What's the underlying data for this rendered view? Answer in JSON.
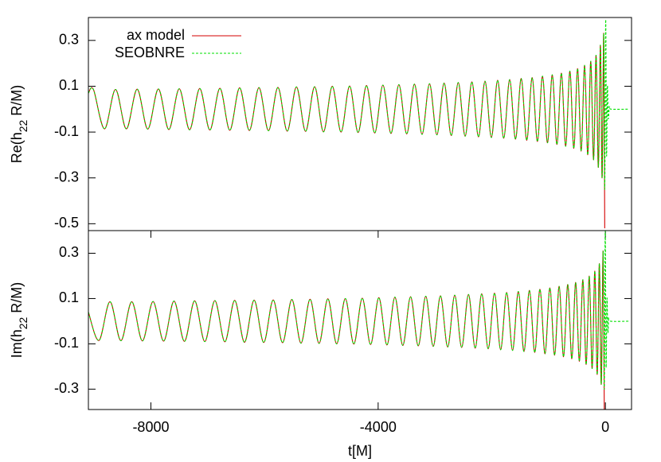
{
  "chart_data": [
    {
      "type": "line",
      "ylabel": [
        "Re(h",
        "22",
        " R/M)"
      ],
      "legend": "top-left",
      "xlim": [
        -9100,
        460
      ],
      "ylim": [
        -0.53,
        0.4
      ],
      "yticks": [
        0.3,
        0.1,
        -0.1,
        -0.3,
        -0.5
      ],
      "x": [
        -9100,
        -9010,
        -8816,
        -8623,
        -8432,
        -8242,
        -8055,
        -7868,
        -7684,
        -7501,
        -7319,
        -7140,
        -6962,
        -6785,
        -6611,
        -6438,
        -6267,
        -6098,
        -5930,
        -5764,
        -5600,
        -5438,
        -5277,
        -5118,
        -4962,
        -4807,
        -4653,
        -4502,
        -4353,
        -4205,
        -4060,
        -3916,
        -3774,
        -3635,
        -3497,
        -3361,
        -3227,
        -3096,
        -2966,
        -2839,
        -2713,
        -2590,
        -2469,
        -2350,
        -2234,
        -2119,
        -2007,
        -1897,
        -1790,
        -1685,
        -1582,
        -1482,
        -1384,
        -1289,
        -1196,
        -1107,
        -1019,
        -935,
        -853,
        -774,
        -699,
        -625,
        -556,
        -489,
        -426,
        -366,
        -310,
        -257,
        -208,
        -164,
        -124,
        -88,
        -58,
        -30,
        -12,
        5,
        20,
        35,
        50,
        70,
        100,
        420
      ],
      "series": [
        {
          "name": "ax model",
          "color": "#d40000",
          "dash": false,
          "values": [
            0.07,
            0.085,
            -0.086,
            0.086,
            -0.086,
            0.087,
            -0.087,
            0.088,
            -0.089,
            0.089,
            -0.09,
            0.09,
            -0.091,
            0.091,
            -0.092,
            0.093,
            -0.093,
            0.094,
            -0.094,
            0.095,
            -0.096,
            0.097,
            -0.097,
            0.098,
            -0.099,
            0.1,
            -0.1,
            0.101,
            -0.102,
            0.103,
            -0.104,
            0.105,
            -0.106,
            0.107,
            -0.108,
            0.109,
            -0.11,
            0.111,
            -0.112,
            0.114,
            -0.115,
            0.116,
            -0.118,
            0.119,
            -0.121,
            0.122,
            -0.124,
            0.126,
            -0.127,
            0.129,
            -0.131,
            0.134,
            -0.136,
            0.138,
            -0.141,
            0.144,
            -0.147,
            0.15,
            -0.154,
            0.157,
            -0.162,
            0.166,
            -0.171,
            0.177,
            -0.183,
            0.191,
            -0.199,
            0.209,
            -0.221,
            0.235,
            -0.254,
            0.279,
            -0.3,
            0.33,
            -0.52,
            null,
            null,
            null,
            null,
            null,
            null,
            null
          ]
        },
        {
          "name": "SEOBNRE",
          "color": "#00e000",
          "dash": true,
          "values": [
            0.07,
            0.085,
            -0.086,
            0.086,
            -0.086,
            0.087,
            -0.087,
            0.088,
            -0.089,
            0.089,
            -0.09,
            0.09,
            -0.091,
            0.091,
            -0.092,
            0.093,
            -0.093,
            0.094,
            -0.094,
            0.095,
            -0.096,
            0.097,
            -0.097,
            0.098,
            -0.099,
            0.1,
            -0.1,
            0.101,
            -0.102,
            0.103,
            -0.104,
            0.105,
            -0.106,
            0.107,
            -0.108,
            0.109,
            -0.11,
            0.111,
            -0.112,
            0.114,
            -0.115,
            0.116,
            -0.118,
            0.119,
            -0.121,
            0.122,
            -0.124,
            0.126,
            -0.127,
            0.129,
            -0.131,
            0.134,
            -0.136,
            0.138,
            -0.141,
            0.144,
            -0.147,
            0.15,
            -0.154,
            0.157,
            -0.162,
            0.166,
            -0.171,
            0.177,
            -0.183,
            0.191,
            -0.199,
            0.209,
            -0.221,
            0.235,
            -0.254,
            0.279,
            -0.3,
            0.33,
            -0.35,
            0.39,
            -0.2,
            0.1,
            -0.04,
            0.01,
            0,
            0
          ]
        }
      ]
    },
    {
      "type": "line",
      "ylabel": [
        "Im(h",
        "22",
        " R/M)"
      ],
      "xlabel": "t[M]",
      "xlim": [
        -9100,
        460
      ],
      "ylim": [
        -0.39,
        0.4
      ],
      "yticks": [
        0.3,
        0.1,
        -0.1,
        -0.3
      ],
      "xticks": [
        -8000,
        -4000,
        0
      ],
      "x": [
        -9100,
        -8913,
        -8720,
        -8528,
        -8337,
        -8149,
        -7962,
        -7776,
        -7593,
        -7410,
        -7230,
        -7051,
        -6874,
        -6698,
        -6525,
        -6353,
        -6183,
        -6014,
        -5847,
        -5682,
        -5519,
        -5358,
        -5198,
        -5040,
        -4885,
        -4730,
        -4578,
        -4428,
        -4279,
        -4133,
        -3988,
        -3845,
        -3705,
        -3566,
        -3429,
        -3294,
        -3162,
        -3031,
        -2903,
        -2776,
        -2652,
        -2530,
        -2410,
        -2292,
        -2177,
        -2063,
        -1952,
        -1844,
        -1738,
        -1634,
        -1532,
        -1433,
        -1337,
        -1243,
        -1152,
        -1063,
        -977,
        -894,
        -814,
        -737,
        -662,
        -591,
        -523,
        -458,
        -396,
        -338,
        -284,
        -233,
        -186,
        -144,
        -106,
        -73,
        -40,
        -20,
        -3,
        12,
        28,
        43,
        60,
        90,
        420
      ],
      "series": [
        {
          "color": "#d40000",
          "dash": false,
          "values": [
            0.04,
            -0.085,
            0.086,
            -0.086,
            0.086,
            -0.087,
            0.087,
            -0.088,
            0.089,
            -0.089,
            0.09,
            -0.09,
            0.091,
            -0.091,
            0.092,
            -0.093,
            0.093,
            -0.094,
            0.094,
            -0.095,
            0.096,
            -0.097,
            0.097,
            -0.098,
            0.099,
            -0.1,
            0.1,
            -0.101,
            0.102,
            -0.103,
            0.104,
            -0.105,
            0.106,
            -0.107,
            0.108,
            -0.109,
            0.11,
            -0.111,
            0.112,
            -0.114,
            0.115,
            -0.116,
            0.118,
            -0.119,
            0.121,
            -0.122,
            0.124,
            -0.126,
            0.127,
            -0.129,
            0.131,
            -0.134,
            0.136,
            -0.138,
            0.141,
            -0.144,
            0.147,
            -0.15,
            0.154,
            -0.157,
            0.162,
            -0.166,
            0.171,
            -0.177,
            0.183,
            -0.191,
            0.199,
            -0.209,
            0.221,
            -0.235,
            0.254,
            -0.279,
            0.31,
            -0.39,
            null,
            null,
            null,
            null,
            null,
            null,
            null
          ]
        },
        {
          "color": "#00e000",
          "dash": true,
          "values": [
            0.04,
            -0.085,
            0.086,
            -0.086,
            0.086,
            -0.087,
            0.087,
            -0.088,
            0.089,
            -0.089,
            0.09,
            -0.09,
            0.091,
            -0.091,
            0.092,
            -0.093,
            0.093,
            -0.094,
            0.094,
            -0.095,
            0.096,
            -0.097,
            0.097,
            -0.098,
            0.099,
            -0.1,
            0.1,
            -0.101,
            0.102,
            -0.103,
            0.104,
            -0.105,
            0.106,
            -0.107,
            0.108,
            -0.109,
            0.11,
            -0.111,
            0.112,
            -0.114,
            0.115,
            -0.116,
            0.118,
            -0.119,
            0.121,
            -0.122,
            0.124,
            -0.126,
            0.127,
            -0.129,
            0.131,
            -0.134,
            0.136,
            -0.138,
            0.141,
            -0.144,
            0.147,
            -0.15,
            0.154,
            -0.157,
            0.162,
            -0.166,
            0.171,
            -0.177,
            0.183,
            -0.191,
            0.199,
            -0.209,
            0.221,
            -0.235,
            0.254,
            -0.279,
            0.31,
            -0.3,
            0.4,
            -0.2,
            0.1,
            -0.05,
            0.015,
            0,
            0
          ]
        }
      ]
    }
  ]
}
